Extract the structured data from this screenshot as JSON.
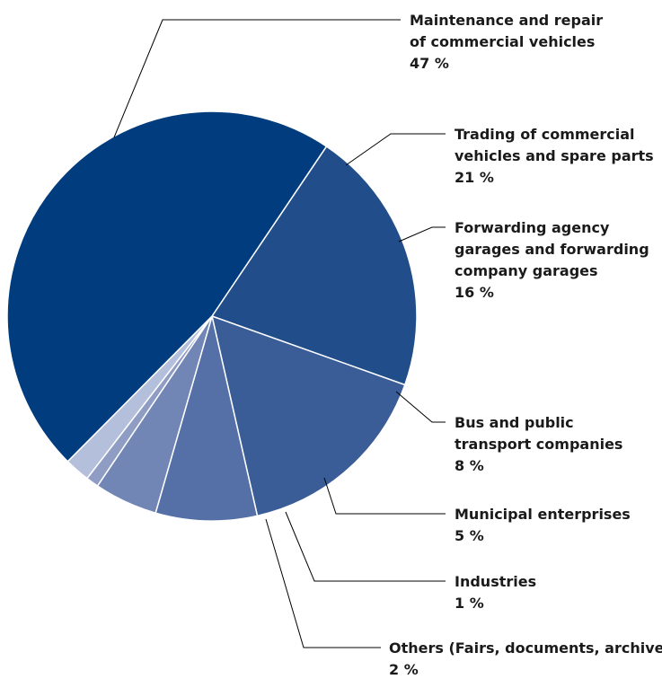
{
  "chart_data": {
    "type": "pie",
    "title": "",
    "slices": [
      {
        "label_lines": [
          "Maintenance and repair",
          "of commercial vehicles"
        ],
        "value": 47,
        "value_label": "47 %",
        "color": "#003C7E"
      },
      {
        "label_lines": [
          "Trading of commercial",
          "vehicles and spare parts"
        ],
        "value": 21,
        "value_label": "21 %",
        "color": "#214D8A"
      },
      {
        "label_lines": [
          "Forwarding agency",
          "garages and forwarding",
          "company garages"
        ],
        "value": 16,
        "value_label": "16 %",
        "color": "#3A5D97"
      },
      {
        "label_lines": [
          "Bus and public",
          "transport companies"
        ],
        "value": 8,
        "value_label": "8 %",
        "color": "#5470A6"
      },
      {
        "label_lines": [
          "Municipal enterprises"
        ],
        "value": 5,
        "value_label": "5 %",
        "color": "#7286B5"
      },
      {
        "label_lines": [
          "Industries"
        ],
        "value": 1,
        "value_label": "1 %",
        "color": "#8F9DC4"
      },
      {
        "label_lines": [
          "Others (Fairs, documents, archives)"
        ],
        "value": 2,
        "value_label": "2 %",
        "color": "#B4BFDB"
      }
    ]
  }
}
